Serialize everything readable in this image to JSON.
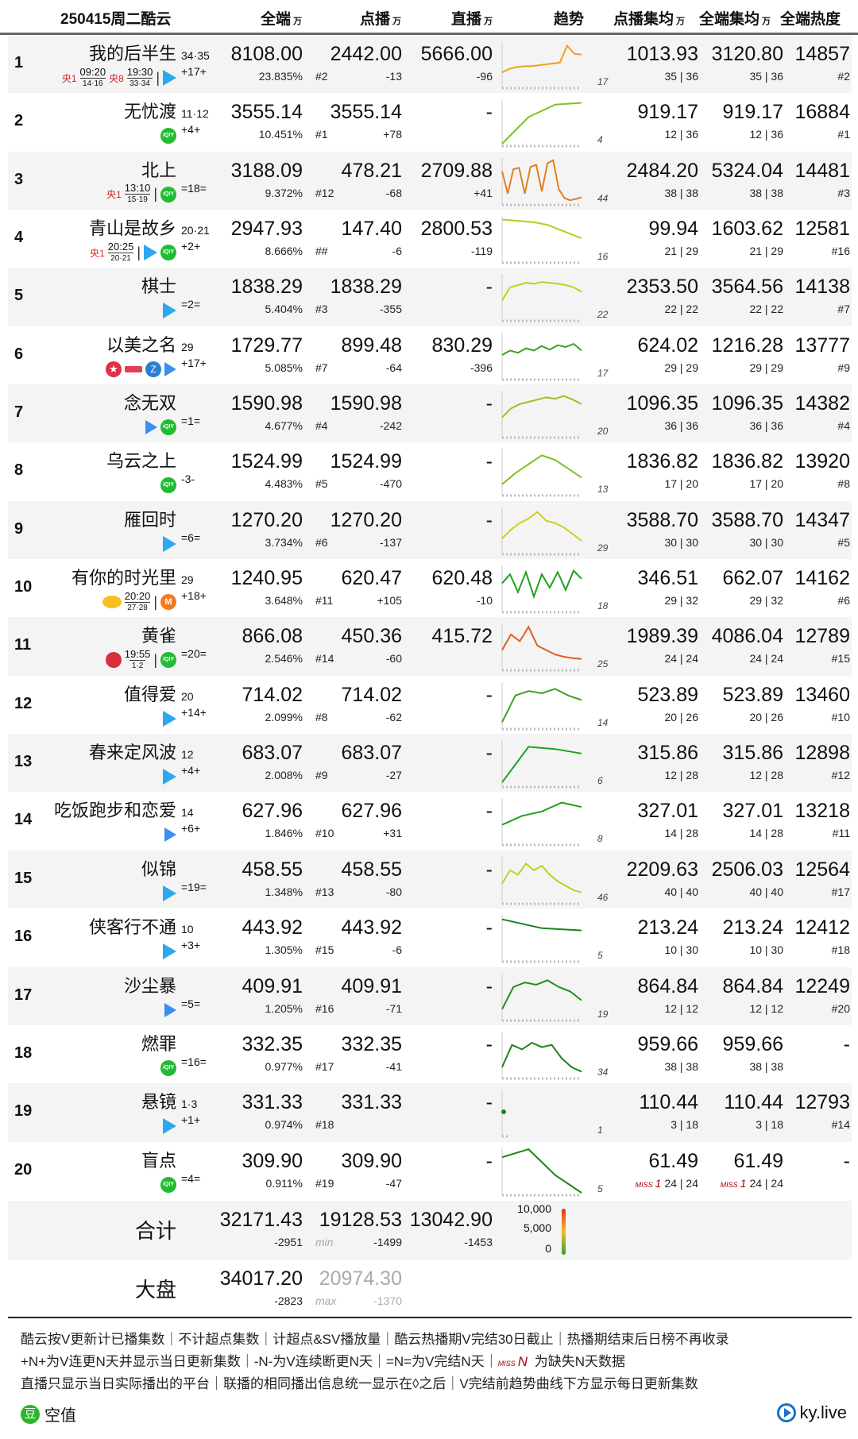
{
  "header": {
    "title": "250415周二酷云",
    "col_total": "全端",
    "col_vod": "点播",
    "col_live": "直播",
    "col_trend": "趋势",
    "col_vod_avg": "点播集均",
    "col_all_avg": "全端集均",
    "col_heat": "全端热度",
    "unit": "万"
  },
  "rows": [
    {
      "rank": "1",
      "title": "我的后半生",
      "ep": "34·35",
      "chg": "+17+",
      "sub": [
        {
          "tv": "央1",
          "time": "09:20",
          "eps": "14·16"
        },
        {
          "tv": "央8",
          "time": "19:30",
          "eps": "33·34"
        }
      ],
      "platforms": [
        "tencent"
      ],
      "total": "8108.00",
      "pct": "23.835%",
      "vod": "2442.00",
      "vod_rank": "#2",
      "vod_chg": "-13",
      "live": "5666.00",
      "live_chg": "-96",
      "trend_eps": "17",
      "trend_color": "#f0a020",
      "trend": [
        30,
        38,
        42,
        44,
        44,
        46,
        48,
        50,
        52,
        90,
        72,
        70
      ],
      "vod_avg": "1013.93",
      "vod_avg_sub": "35 | 36",
      "all_avg": "3120.80",
      "all_avg_sub": "35 | 36",
      "heat": "14857",
      "heat_rank": "#2"
    },
    {
      "rank": "2",
      "title": "无忧渡",
      "ep": "11·12",
      "chg": "+4+",
      "platforms": [
        "iqiyi"
      ],
      "total": "3555.14",
      "pct": "10.451%",
      "vod": "3555.14",
      "vod_rank": "#1",
      "vod_chg": "+78",
      "live": "-",
      "live_chg": "",
      "trend_eps": "4",
      "trend_color": "#80c020",
      "trend": [
        0,
        60,
        88,
        92
      ],
      "vod_avg": "919.17",
      "vod_avg_sub": "12 | 36",
      "all_avg": "919.17",
      "all_avg_sub": "12 | 36",
      "heat": "16884",
      "heat_rank": "#1"
    },
    {
      "rank": "3",
      "title": "北上",
      "ep": "",
      "chg": "=18=",
      "sub": [
        {
          "tv": "央1",
          "time": "13:10",
          "eps": "15·19"
        }
      ],
      "platforms": [
        "iqiyi"
      ],
      "total": "3188.09",
      "pct": "9.372%",
      "vod": "478.21",
      "vod_rank": "#12",
      "vod_chg": "-68",
      "live": "2709.88",
      "live_chg": "+41",
      "trend_eps": "44",
      "trend_color": "#e08020",
      "trend": [
        70,
        20,
        75,
        78,
        20,
        80,
        85,
        25,
        88,
        95,
        30,
        10,
        5,
        8,
        12
      ],
      "vod_avg": "2484.20",
      "vod_avg_sub": "38 | 38",
      "all_avg": "5324.04",
      "all_avg_sub": "38 | 38",
      "heat": "14481",
      "heat_rank": "#3"
    },
    {
      "rank": "4",
      "title": "青山是故乡",
      "ep": "20·21",
      "chg": "+2+",
      "sub": [
        {
          "tv": "央1",
          "time": "20:25",
          "eps": "20·21"
        }
      ],
      "platforms": [
        "tencent",
        "iqiyi"
      ],
      "total": "2947.93",
      "pct": "8.666%",
      "vod": "147.40",
      "vod_rank": "##",
      "vod_chg": "-6",
      "live": "2800.53",
      "live_chg": "-119",
      "trend_eps": "16",
      "trend_color": "#b0d020",
      "trend": [
        92,
        90,
        88,
        85,
        80,
        70,
        60,
        50
      ],
      "vod_avg": "99.94",
      "vod_avg_sub": "21 | 29",
      "all_avg": "1603.62",
      "all_avg_sub": "21 | 29",
      "heat": "12581",
      "heat_rank": "#16"
    },
    {
      "rank": "5",
      "title": "棋士",
      "ep": "",
      "chg": "=2=",
      "platforms": [
        "tencent"
      ],
      "total": "1838.29",
      "pct": "5.404%",
      "vod": "1838.29",
      "vod_rank": "#3",
      "vod_chg": "-355",
      "live": "-",
      "live_chg": "",
      "trend_eps": "22",
      "trend_color": "#c0d020",
      "trend": [
        40,
        70,
        75,
        80,
        78,
        82,
        80,
        78,
        75,
        70,
        60
      ],
      "vod_avg": "2353.50",
      "vod_avg_sub": "22 | 22",
      "all_avg": "3564.56",
      "all_avg_sub": "22 | 22",
      "heat": "14138",
      "heat_rank": "#7"
    },
    {
      "rank": "6",
      "title": "以美之名",
      "ep": "29",
      "chg": "+17+",
      "platforms": [
        "dragon",
        "btv",
        "zhejiang",
        "youku"
      ],
      "total": "1729.77",
      "pct": "5.085%",
      "vod": "899.48",
      "vod_rank": "#7",
      "vod_chg": "-64",
      "live": "830.29",
      "live_chg": "-396",
      "trend_eps": "17",
      "trend_color": "#40a020",
      "trend": [
        50,
        60,
        55,
        65,
        60,
        70,
        62,
        72,
        68,
        75,
        60
      ],
      "vod_avg": "624.02",
      "vod_avg_sub": "29 | 29",
      "all_avg": "1216.28",
      "all_avg_sub": "29 | 29",
      "heat": "13777",
      "heat_rank": "#9"
    },
    {
      "rank": "7",
      "title": "念无双",
      "ep": "",
      "chg": "=1=",
      "platforms": [
        "youku",
        "iqiyi"
      ],
      "total": "1590.98",
      "pct": "4.677%",
      "vod": "1590.98",
      "vod_rank": "#4",
      "vod_chg": "-242",
      "live": "-",
      "live_chg": "",
      "trend_eps": "20",
      "trend_color": "#a0c020",
      "trend": [
        40,
        60,
        70,
        75,
        80,
        85,
        82,
        88,
        80,
        70
      ],
      "vod_avg": "1096.35",
      "vod_avg_sub": "36 | 36",
      "all_avg": "1096.35",
      "all_avg_sub": "36 | 36",
      "heat": "14382",
      "heat_rank": "#4"
    },
    {
      "rank": "8",
      "title": "乌云之上",
      "ep": "",
      "chg": "-3-",
      "platforms": [
        "iqiyi"
      ],
      "total": "1524.99",
      "pct": "4.483%",
      "vod": "1524.99",
      "vod_rank": "#5",
      "vod_chg": "-470",
      "live": "-",
      "live_chg": "",
      "trend_eps": "13",
      "trend_color": "#80c020",
      "trend": [
        20,
        45,
        65,
        85,
        75,
        55,
        35
      ],
      "vod_avg": "1836.82",
      "vod_avg_sub": "17 | 20",
      "all_avg": "1836.82",
      "all_avg_sub": "17 | 20",
      "heat": "13920",
      "heat_rank": "#8"
    },
    {
      "rank": "9",
      "title": "雁回时",
      "ep": "",
      "chg": "=6=",
      "platforms": [
        "tencent"
      ],
      "total": "1270.20",
      "pct": "3.734%",
      "vod": "1270.20",
      "vod_rank": "#6",
      "vod_chg": "-137",
      "live": "-",
      "live_chg": "",
      "trend_eps": "29",
      "trend_color": "#d0d020",
      "trend": [
        30,
        50,
        65,
        75,
        90,
        70,
        65,
        55,
        40,
        25
      ],
      "vod_avg": "3588.70",
      "vod_avg_sub": "30 | 30",
      "all_avg": "3588.70",
      "all_avg_sub": "30 | 30",
      "heat": "14347",
      "heat_rank": "#5"
    },
    {
      "rank": "10",
      "title": "有你的时光里",
      "ep": "29",
      "chg": "+18+",
      "sub": [
        {
          "tv": "",
          "logo": "hunan",
          "time": "20:20",
          "eps": "27·28"
        }
      ],
      "platforms": [
        "mango"
      ],
      "total": "1240.95",
      "pct": "3.648%",
      "vod": "620.47",
      "vod_rank": "#11",
      "vod_chg": "+105",
      "live": "620.48",
      "live_chg": "-10",
      "trend_eps": "18",
      "trend_color": "#20a020",
      "trend": [
        60,
        80,
        40,
        85,
        30,
        80,
        50,
        85,
        45,
        88,
        70
      ],
      "vod_avg": "346.51",
      "vod_avg_sub": "29 | 32",
      "all_avg": "662.07",
      "all_avg_sub": "29 | 32",
      "heat": "14162",
      "heat_rank": "#6"
    },
    {
      "rank": "11",
      "title": "黄雀",
      "ep": "",
      "chg": "=20=",
      "sub": [
        {
          "tv": "",
          "logo": "jiangsu",
          "time": "19:55",
          "eps": "1·2"
        }
      ],
      "platforms": [
        "iqiyi"
      ],
      "total": "866.08",
      "pct": "2.546%",
      "vod": "450.36",
      "vod_rank": "#14",
      "vod_chg": "-60",
      "live": "415.72",
      "live_chg": "",
      "trend_eps": "25",
      "trend_color": "#e06020",
      "trend": [
        40,
        75,
        60,
        92,
        50,
        40,
        30,
        25,
        22,
        20
      ],
      "vod_avg": "1989.39",
      "vod_avg_sub": "24 | 24",
      "all_avg": "4086.04",
      "all_avg_sub": "24 | 24",
      "heat": "12789",
      "heat_rank": "#15"
    },
    {
      "rank": "12",
      "title": "值得爱",
      "ep": "20",
      "chg": "+14+",
      "platforms": [
        "tencent"
      ],
      "total": "714.02",
      "pct": "2.099%",
      "vod": "714.02",
      "vod_rank": "#8",
      "vod_chg": "-62",
      "live": "-",
      "live_chg": "",
      "trend_eps": "14",
      "trend_color": "#40a020",
      "trend": [
        10,
        70,
        80,
        75,
        85,
        70,
        60
      ],
      "vod_avg": "523.89",
      "vod_avg_sub": "20 | 26",
      "all_avg": "523.89",
      "all_avg_sub": "20 | 26",
      "heat": "13460",
      "heat_rank": "#10"
    },
    {
      "rank": "13",
      "title": "春来定风波",
      "ep": "12",
      "chg": "+4+",
      "platforms": [
        "tencent"
      ],
      "total": "683.07",
      "pct": "2.008%",
      "vod": "683.07",
      "vod_rank": "#9",
      "vod_chg": "-27",
      "live": "-",
      "live_chg": "",
      "trend_eps": "6",
      "trend_color": "#20a020",
      "trend": [
        5,
        85,
        80,
        70
      ],
      "vod_avg": "315.86",
      "vod_avg_sub": "12 | 28",
      "all_avg": "315.86",
      "all_avg_sub": "12 | 28",
      "heat": "12898",
      "heat_rank": "#12"
    },
    {
      "rank": "14",
      "title": "吃饭跑步和恋爱",
      "ep": "14",
      "chg": "+6+",
      "platforms": [
        "youku"
      ],
      "total": "627.96",
      "pct": "1.846%",
      "vod": "627.96",
      "vod_rank": "#10",
      "vod_chg": "+31",
      "live": "-",
      "live_chg": "",
      "trend_eps": "8",
      "trend_color": "#20a020",
      "trend": [
        40,
        60,
        70,
        90,
        80
      ],
      "vod_avg": "327.01",
      "vod_avg_sub": "14 | 28",
      "all_avg": "327.01",
      "all_avg_sub": "14 | 28",
      "heat": "13218",
      "heat_rank": "#11"
    },
    {
      "rank": "15",
      "title": "似锦",
      "ep": "",
      "chg": "=19=",
      "platforms": [
        "tencent"
      ],
      "total": "458.55",
      "pct": "1.348%",
      "vod": "458.55",
      "vod_rank": "#13",
      "vod_chg": "-80",
      "live": "-",
      "live_chg": "",
      "trend_eps": "46",
      "trend_color": "#c0d020",
      "trend": [
        40,
        70,
        60,
        85,
        70,
        80,
        60,
        45,
        35,
        25,
        20
      ],
      "vod_avg": "2209.63",
      "vod_avg_sub": "40 | 40",
      "all_avg": "2506.03",
      "all_avg_sub": "40 | 40",
      "heat": "12564",
      "heat_rank": "#17"
    },
    {
      "rank": "16",
      "title": "侠客行不通",
      "ep": "10",
      "chg": "+3+",
      "platforms": [
        "tencent"
      ],
      "total": "443.92",
      "pct": "1.305%",
      "vod": "443.92",
      "vod_rank": "#15",
      "vod_chg": "-6",
      "live": "-",
      "live_chg": "",
      "trend_eps": "5",
      "trend_color": "#208020",
      "trend": [
        90,
        70,
        65
      ],
      "vod_avg": "213.24",
      "vod_avg_sub": "10 | 30",
      "all_avg": "213.24",
      "all_avg_sub": "10 | 30",
      "heat": "12412",
      "heat_rank": "#18"
    },
    {
      "rank": "17",
      "title": "沙尘暴",
      "ep": "",
      "chg": "=5=",
      "platforms": [
        "youku"
      ],
      "total": "409.91",
      "pct": "1.205%",
      "vod": "409.91",
      "vod_rank": "#16",
      "vod_chg": "-71",
      "live": "-",
      "live_chg": "",
      "trend_eps": "19",
      "trend_color": "#209020",
      "trend": [
        20,
        70,
        80,
        75,
        85,
        70,
        60,
        40
      ],
      "vod_avg": "864.84",
      "vod_avg_sub": "12 | 12",
      "all_avg": "864.84",
      "all_avg_sub": "12 | 12",
      "heat": "12249",
      "heat_rank": "#20"
    },
    {
      "rank": "18",
      "title": "燃罪",
      "ep": "",
      "chg": "=16=",
      "platforms": [
        "iqiyi"
      ],
      "total": "332.35",
      "pct": "0.977%",
      "vod": "332.35",
      "vod_rank": "#17",
      "vod_chg": "-41",
      "live": "-",
      "live_chg": "",
      "trend_eps": "34",
      "trend_color": "#208020",
      "trend": [
        20,
        70,
        60,
        75,
        65,
        70,
        40,
        20,
        10
      ],
      "vod_avg": "959.66",
      "vod_avg_sub": "38 | 38",
      "all_avg": "959.66",
      "all_avg_sub": "38 | 38",
      "heat": "-",
      "heat_rank": ""
    },
    {
      "rank": "19",
      "title": "悬镜",
      "ep": "1·3",
      "chg": "+1+",
      "platforms": [
        "tencent"
      ],
      "total": "331.33",
      "pct": "0.974%",
      "vod": "331.33",
      "vod_rank": "#18",
      "vod_chg": "",
      "live": "-",
      "live_chg": "",
      "trend_eps": "1",
      "trend_color": "#208020",
      "trend": [
        50
      ],
      "vod_avg": "110.44",
      "vod_avg_sub": "3 | 18",
      "all_avg": "110.44",
      "all_avg_sub": "3 | 18",
      "heat": "12793",
      "heat_rank": "#14"
    },
    {
      "rank": "20",
      "title": "盲点",
      "ep": "",
      "chg": "=4=",
      "platforms": [
        "iqiyi"
      ],
      "total": "309.90",
      "pct": "0.911%",
      "vod": "309.90",
      "vod_rank": "#19",
      "vod_chg": "-47",
      "live": "-",
      "live_chg": "",
      "trend_eps": "5",
      "trend_color": "#208020",
      "trend": [
        80,
        98,
        40,
        0
      ],
      "vod_avg": "61.49",
      "vod_avg_sub": "24 | 24",
      "vod_avg_miss": "1",
      "all_avg": "61.49",
      "all_avg_sub": "24 | 24",
      "all_avg_miss": "1",
      "heat": "-",
      "heat_rank": ""
    }
  ],
  "totals": {
    "label": "合计",
    "total": "32171.43",
    "total_chg": "-2951",
    "vod": "19128.53",
    "vod_note": "min",
    "vod_chg": "-1499",
    "live": "13042.90",
    "live_chg": "-1453",
    "scale": [
      "10,000",
      "5,000",
      "0"
    ]
  },
  "market": {
    "label": "大盘",
    "total": "34017.20",
    "total_chg": "-2823",
    "vod": "20974.30",
    "vod_note": "max",
    "vod_chg": "-1370"
  },
  "miss_label": "MISS",
  "footer": {
    "line1": "酷云按V更新计已播集数｜不计超点集数｜计超点&SV播放量｜酷云热播期V完结30日截止｜热播期结束后日榜不再收录",
    "line2a": "+N+为V连更N天并显示当日更新集数｜-N-为V连续断更N天｜=N=为V完结N天｜",
    "line2_miss": "MISS",
    "line2_n": "N",
    "line2b": " 为缺失N天数据",
    "line3": "直播只显示当日实际播出的平台｜联播的相同播出信息统一显示在◊之后｜V完结前趋势曲线下方显示每日更新集数",
    "left_logo_char": "豆",
    "left_label": "空值",
    "right_label": "ky.live"
  }
}
